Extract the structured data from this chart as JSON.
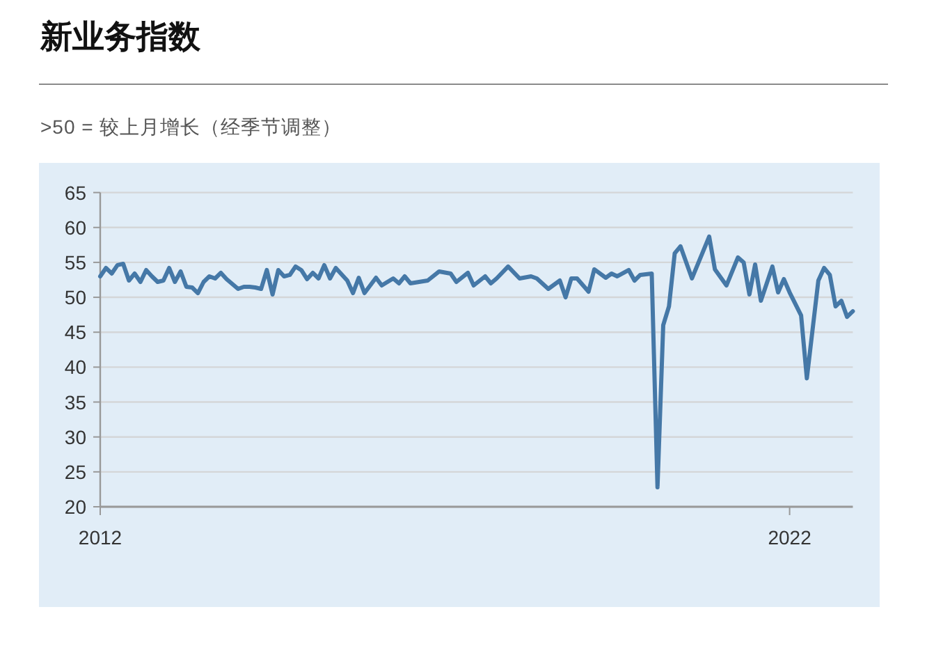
{
  "chart_data": {
    "type": "line",
    "title": "新业务指数",
    "subtitle": ">50 = 较上月增长（经季节调整）",
    "x": [
      "2012-01",
      "2012-02",
      "2012-03",
      "2012-04",
      "2012-05",
      "2012-06",
      "2012-07",
      "2012-08",
      "2012-09",
      "2012-10",
      "2012-11",
      "2012-12",
      "2013-01",
      "2013-02",
      "2013-03",
      "2013-04",
      "2013-05",
      "2013-06",
      "2013-07",
      "2013-08",
      "2013-09",
      "2013-10",
      "2013-11",
      "2013-12",
      "2014-01",
      "2014-02",
      "2014-03",
      "2014-04",
      "2014-05",
      "2014-06",
      "2014-07",
      "2014-08",
      "2014-09",
      "2014-10",
      "2014-11",
      "2014-12",
      "2015-01",
      "2015-02",
      "2015-03",
      "2015-04",
      "2015-05",
      "2015-06",
      "2015-08",
      "2015-09",
      "2015-10",
      "2015-11",
      "2016-01",
      "2016-02",
      "2016-04",
      "2016-05",
      "2016-06",
      "2016-07",
      "2016-10",
      "2016-12",
      "2017-02",
      "2017-03",
      "2017-05",
      "2017-06",
      "2017-08",
      "2017-09",
      "2017-10",
      "2017-12",
      "2018-02",
      "2018-04",
      "2018-05",
      "2018-07",
      "2018-09",
      "2018-10",
      "2018-11",
      "2018-12",
      "2019-02",
      "2019-03",
      "2019-05",
      "2019-06",
      "2019-07",
      "2019-09",
      "2019-10",
      "2019-11",
      "2020-01",
      "2020-02",
      "2020-03",
      "2020-04",
      "2020-05",
      "2020-06",
      "2020-08",
      "2020-09",
      "2020-11",
      "2020-12",
      "2021-02",
      "2021-04",
      "2021-05",
      "2021-06",
      "2021-07",
      "2021-08",
      "2021-10",
      "2021-11",
      "2021-12",
      "2022-01",
      "2022-03",
      "2022-04",
      "2022-06",
      "2022-07",
      "2022-08",
      "2022-09",
      "2022-10",
      "2022-11",
      "2022-12"
    ],
    "series": [
      {
        "color": "#4578a7",
        "values": [
          53.0,
          54.2,
          53.4,
          54.6,
          54.8,
          52.4,
          53.4,
          52.2,
          53.9,
          53.0,
          52.2,
          52.4,
          54.2,
          52.2,
          53.7,
          51.5,
          51.4,
          50.6,
          52.2,
          53.0,
          52.7,
          53.5,
          52.6,
          51.9,
          51.2,
          51.5,
          51.5,
          51.4,
          51.2,
          53.9,
          50.4,
          53.9,
          53.0,
          53.2,
          54.4,
          53.9,
          52.6,
          53.5,
          52.7,
          54.6,
          52.7,
          54.2,
          52.4,
          50.6,
          52.8,
          50.6,
          52.8,
          51.7,
          52.7,
          52.0,
          53.0,
          52.0,
          52.4,
          53.7,
          53.4,
          52.2,
          53.5,
          51.7,
          53.0,
          52.0,
          52.7,
          54.4,
          52.7,
          53.0,
          52.7,
          51.2,
          52.4,
          50.0,
          52.7,
          52.7,
          50.8,
          54.0,
          52.8,
          53.4,
          53.0,
          53.9,
          52.4,
          53.2,
          53.4,
          22.8,
          46.0,
          48.7,
          56.3,
          57.3,
          52.7,
          54.7,
          58.7,
          54.0,
          51.7,
          55.7,
          55.0,
          50.4,
          54.7,
          49.5,
          54.4,
          50.7,
          52.6,
          50.7,
          47.4,
          38.4,
          52.4,
          54.2,
          53.2,
          48.7,
          49.5,
          47.2,
          48.0
        ]
      }
    ],
    "xlim": [
      "2012-01",
      "2022-12"
    ],
    "xticks": [
      {
        "value": "2012-01",
        "label": "2012"
      },
      {
        "value": "2022-01",
        "label": "2022"
      }
    ],
    "ylim": [
      20,
      65
    ],
    "yticks": [
      20,
      25,
      30,
      35,
      40,
      45,
      50,
      55,
      60,
      65
    ],
    "grid": "y"
  }
}
